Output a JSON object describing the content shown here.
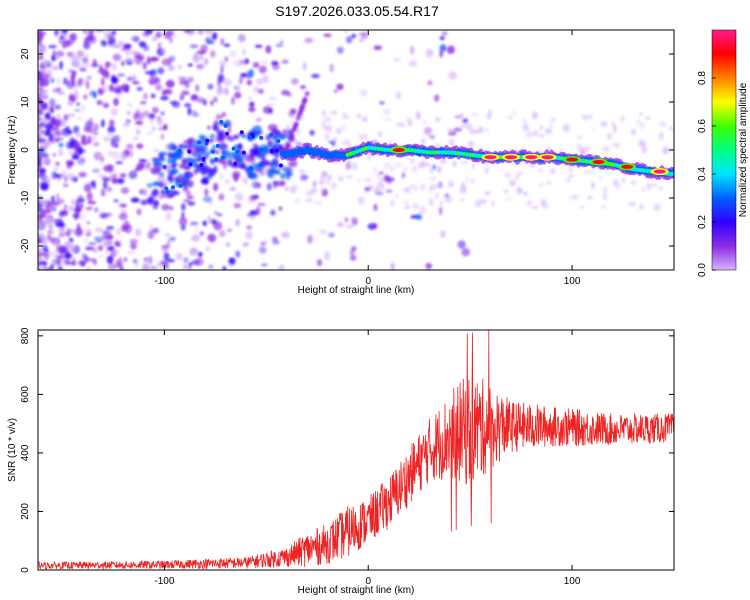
{
  "title": "S197.2026.033.05.54.R17",
  "chart_data": [
    {
      "type": "heatmap",
      "name": "spectrogram",
      "xlabel": "Height of straight line (km)",
      "ylabel": "Frequency (Hz)",
      "xlim": [
        -162,
        150
      ],
      "ylim": [
        -25,
        25
      ],
      "xticks": [
        -100,
        0,
        100
      ],
      "yticks": [
        -20,
        -10,
        0,
        10,
        20
      ],
      "xtick_labels": [
        "-100",
        "0",
        "100"
      ],
      "ytick_labels": [
        "-20",
        "-10",
        "0",
        "10",
        "20"
      ],
      "colorbar": {
        "label": "Normalized spectral amplitude",
        "range": [
          0,
          1
        ],
        "ticks": [
          0.0,
          0.2,
          0.4,
          0.6,
          0.8
        ],
        "tick_labels": [
          "0.0",
          "0.2",
          "0.4",
          "0.6",
          "0.8"
        ],
        "colormap": [
          "#d9b3ff",
          "#8a2be2",
          "#3000ff",
          "#0060ff",
          "#00e5ff",
          "#00ff80",
          "#40ff00",
          "#ffff00",
          "#ff8000",
          "#ff0000",
          "#ff1a8c"
        ]
      },
      "ridge": [
        {
          "x": -100,
          "y": -5.5
        },
        {
          "x": -90,
          "y": -3
        },
        {
          "x": -80,
          "y": -2
        },
        {
          "x": -70,
          "y": 3
        },
        {
          "x": -60,
          "y": -1
        },
        {
          "x": -50,
          "y": 0
        },
        {
          "x": -40,
          "y": -1
        },
        {
          "x": -30,
          "y": 0
        },
        {
          "x": -20,
          "y": -1
        },
        {
          "x": -10,
          "y": -1
        },
        {
          "x": 0,
          "y": 0.5
        },
        {
          "x": 10,
          "y": 0
        },
        {
          "x": 20,
          "y": 0
        },
        {
          "x": 30,
          "y": -0.5
        },
        {
          "x": 40,
          "y": -0.5
        },
        {
          "x": 50,
          "y": -1
        },
        {
          "x": 60,
          "y": -1.5
        },
        {
          "x": 70,
          "y": -1.5
        },
        {
          "x": 80,
          "y": -1.5
        },
        {
          "x": 90,
          "y": -1.5
        },
        {
          "x": 100,
          "y": -2
        },
        {
          "x": 110,
          "y": -2.5
        },
        {
          "x": 120,
          "y": -3
        },
        {
          "x": 130,
          "y": -4
        },
        {
          "x": 140,
          "y": -4.5
        },
        {
          "x": 148,
          "y": -5
        }
      ],
      "peaks": [
        {
          "x": 15,
          "y": 0,
          "amp": 0.9
        },
        {
          "x": 60,
          "y": -1.5,
          "amp": 1.0
        },
        {
          "x": 70,
          "y": -1.5,
          "amp": 1.0
        },
        {
          "x": 80,
          "y": -1.5,
          "amp": 1.0
        },
        {
          "x": 88,
          "y": -1.5,
          "amp": 0.95
        },
        {
          "x": 100,
          "y": -2,
          "amp": 0.9
        },
        {
          "x": 113,
          "y": -2.5,
          "amp": 0.9
        },
        {
          "x": 127,
          "y": -3.5,
          "amp": 0.85
        },
        {
          "x": 143,
          "y": -4.5,
          "amp": 0.95
        }
      ]
    },
    {
      "type": "line",
      "name": "snr",
      "xlabel": "Height of straight line (km)",
      "ylabel": "SNR (10 * v/v)",
      "xlim": [
        -162,
        150
      ],
      "ylim": [
        0,
        820
      ],
      "xticks": [
        -100,
        0,
        100
      ],
      "yticks": [
        0,
        200,
        400,
        600,
        800
      ],
      "xtick_labels": [
        "-100",
        "0",
        "100"
      ],
      "ytick_labels": [
        "0",
        "200",
        "400",
        "600",
        "800"
      ],
      "color": "#ee2222",
      "envelope": [
        {
          "x": -162,
          "base": 15,
          "noise": 12
        },
        {
          "x": -100,
          "base": 18,
          "noise": 14
        },
        {
          "x": -60,
          "base": 25,
          "noise": 20
        },
        {
          "x": -40,
          "base": 45,
          "noise": 35
        },
        {
          "x": -30,
          "base": 70,
          "noise": 60
        },
        {
          "x": -20,
          "base": 90,
          "noise": 70
        },
        {
          "x": -10,
          "base": 130,
          "noise": 90
        },
        {
          "x": 0,
          "base": 170,
          "noise": 80
        },
        {
          "x": 10,
          "base": 230,
          "noise": 90
        },
        {
          "x": 20,
          "base": 320,
          "noise": 100
        },
        {
          "x": 30,
          "base": 410,
          "noise": 110
        },
        {
          "x": 40,
          "base": 460,
          "noise": 150
        },
        {
          "x": 50,
          "base": 480,
          "noise": 200
        },
        {
          "x": 60,
          "base": 490,
          "noise": 150
        },
        {
          "x": 70,
          "base": 490,
          "noise": 90
        },
        {
          "x": 90,
          "base": 490,
          "noise": 70
        },
        {
          "x": 120,
          "base": 480,
          "noise": 55
        },
        {
          "x": 150,
          "base": 485,
          "noise": 50
        }
      ]
    }
  ]
}
